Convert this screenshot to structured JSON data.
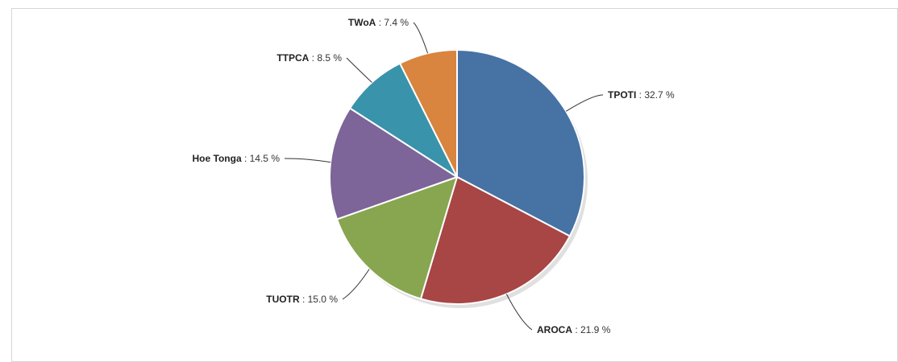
{
  "chart_data": {
    "type": "pie",
    "title": "",
    "slices": [
      {
        "name": "TPOTI",
        "value": 32.7,
        "display": "32.7 %",
        "color": "#4672a4"
      },
      {
        "name": "AROCA",
        "value": 21.9,
        "display": "21.9 %",
        "color": "#a84545"
      },
      {
        "name": "TUOTR",
        "value": 15.0,
        "display": "15.0 %",
        "color": "#87a64f"
      },
      {
        "name": "Hoe Tonga",
        "value": 14.5,
        "display": "14.5 %",
        "color": "#7d6499"
      },
      {
        "name": "TTPCA",
        "value": 8.5,
        "display": "8.5 %",
        "color": "#3993ab"
      },
      {
        "name": "TWoA",
        "value": 7.4,
        "display": "7.4 %",
        "color": "#d9843f"
      }
    ],
    "label_separator": " : ",
    "legend": "none"
  }
}
